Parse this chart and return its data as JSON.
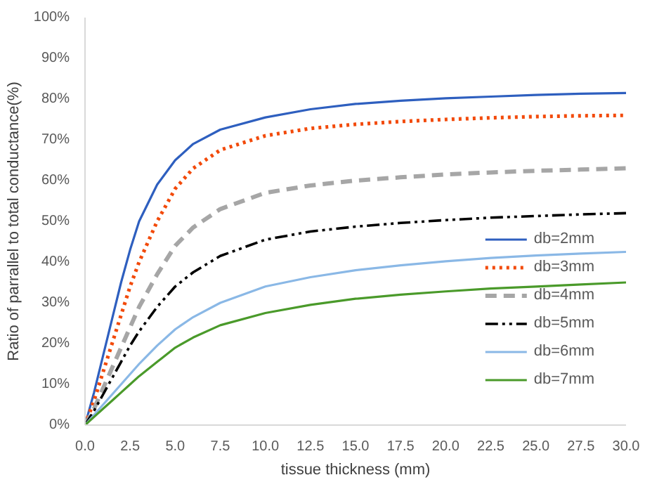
{
  "chart_data": {
    "type": "line",
    "xlabel": "tissue thickness (mm)",
    "ylabel": "Ratio of parrallel to total conductance(%)",
    "x": [
      0,
      0.5,
      1,
      1.5,
      2,
      2.5,
      3,
      4,
      5,
      6,
      7.5,
      10,
      12.5,
      15,
      17.5,
      20,
      22.5,
      25,
      27.5,
      30
    ],
    "series": [
      {
        "name": "db=2mm",
        "color": "#2e5fbf",
        "line_style": "solid",
        "values": [
          0,
          8,
          17,
          26,
          35,
          43,
          50,
          59,
          65,
          69,
          72.5,
          75.5,
          77.5,
          78.8,
          79.6,
          80.2,
          80.6,
          81,
          81.3,
          81.5
        ]
      },
      {
        "name": "db=3mm",
        "color": "#f24a0a",
        "line_style": "dotted",
        "values": [
          0,
          6,
          13,
          20,
          27,
          34,
          40,
          50,
          58,
          63,
          67.5,
          71,
          72.8,
          73.8,
          74.5,
          75,
          75.4,
          75.7,
          75.9,
          76
        ]
      },
      {
        "name": "db=4mm",
        "color": "#a6a6a6",
        "line_style": "dashed",
        "values": [
          0,
          4,
          9,
          14,
          19,
          24,
          29,
          37,
          44,
          48.5,
          53,
          57,
          58.8,
          60,
          60.8,
          61.5,
          62,
          62.4,
          62.7,
          63
        ]
      },
      {
        "name": "db=5mm",
        "color": "#000000",
        "line_style": "dashdot",
        "values": [
          0,
          3.5,
          7.5,
          11.5,
          15.5,
          19.5,
          23,
          29,
          34,
          37.5,
          41.5,
          45.5,
          47.5,
          48.7,
          49.6,
          50.3,
          50.9,
          51.3,
          51.7,
          52
        ]
      },
      {
        "name": "db=6mm",
        "color": "#8ab8e6",
        "line_style": "solid",
        "values": [
          0,
          2.5,
          5,
          7.5,
          10,
          12.5,
          15,
          19.5,
          23.5,
          26.5,
          30,
          34,
          36.3,
          38,
          39.2,
          40.2,
          41,
          41.6,
          42.1,
          42.5
        ]
      },
      {
        "name": "db=7mm",
        "color": "#4a9a2a",
        "line_style": "solid",
        "values": [
          0,
          2,
          4,
          6,
          8,
          10,
          12,
          15.5,
          19,
          21.5,
          24.5,
          27.5,
          29.5,
          31,
          32,
          32.8,
          33.5,
          34,
          34.5,
          35
        ]
      }
    ],
    "xlim": [
      0,
      30
    ],
    "xticks": [
      {
        "value": 0,
        "label": "0.0"
      },
      {
        "value": 2.5,
        "label": "2.5"
      },
      {
        "value": 5,
        "label": "5.0"
      },
      {
        "value": 7.5,
        "label": "7.5"
      },
      {
        "value": 10,
        "label": "10.0"
      },
      {
        "value": 12.5,
        "label": "12.5"
      },
      {
        "value": 15,
        "label": "15.0"
      },
      {
        "value": 17.5,
        "label": "17.5"
      },
      {
        "value": 20,
        "label": "20.0"
      },
      {
        "value": 22.5,
        "label": "22.5"
      },
      {
        "value": 25,
        "label": "25.0"
      },
      {
        "value": 27.5,
        "label": "27.5"
      },
      {
        "value": 30,
        "label": "30.0"
      }
    ],
    "ylim": [
      0,
      100
    ],
    "yticks": [
      {
        "value": 0,
        "label": "0%"
      },
      {
        "value": 10,
        "label": "10%"
      },
      {
        "value": 20,
        "label": "20%"
      },
      {
        "value": 30,
        "label": "30%"
      },
      {
        "value": 40,
        "label": "40%"
      },
      {
        "value": 50,
        "label": "50%"
      },
      {
        "value": 60,
        "label": "60%"
      },
      {
        "value": 70,
        "label": "70%"
      },
      {
        "value": 80,
        "label": "80%"
      },
      {
        "value": 90,
        "label": "90%"
      },
      {
        "value": 100,
        "label": "100%"
      }
    ],
    "grid": false,
    "legend": "bottom right",
    "marker": "none"
  }
}
